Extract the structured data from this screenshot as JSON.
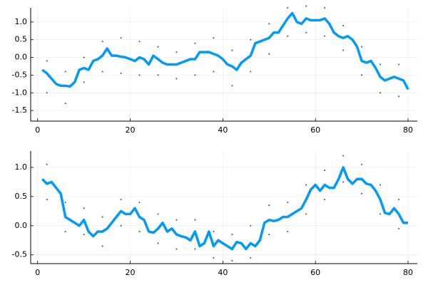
{
  "chart_data": [
    {
      "type": "line",
      "x": [
        1,
        2,
        3,
        4,
        5,
        6,
        7,
        8,
        9,
        10,
        11,
        12,
        13,
        14,
        15,
        16,
        17,
        18,
        19,
        20,
        21,
        22,
        23,
        24,
        25,
        26,
        27,
        28,
        29,
        30,
        31,
        32,
        33,
        34,
        35,
        36,
        37,
        38,
        39,
        40,
        41,
        42,
        43,
        44,
        45,
        46,
        47,
        48,
        49,
        50,
        51,
        52,
        53,
        54,
        55,
        56,
        57,
        58,
        59,
        60,
        61,
        62,
        63,
        64,
        65,
        66,
        67,
        68,
        69,
        70,
        71,
        72,
        73,
        74,
        75,
        76,
        77,
        78,
        79,
        80
      ],
      "series": [
        {
          "color": "#009af9",
          "values": [
            -0.35,
            -0.45,
            -0.6,
            -0.75,
            -0.8,
            -0.8,
            -0.82,
            -0.7,
            -0.35,
            -0.3,
            -0.35,
            -0.1,
            -0.05,
            0.05,
            0.25,
            0.05,
            0.05,
            0.02,
            0.0,
            -0.05,
            -0.1,
            0.0,
            -0.05,
            -0.2,
            0.05,
            -0.05,
            -0.15,
            -0.2,
            -0.2,
            -0.2,
            -0.15,
            -0.1,
            -0.05,
            -0.05,
            0.15,
            0.15,
            0.15,
            0.1,
            0.05,
            -0.05,
            -0.2,
            -0.25,
            -0.35,
            -0.15,
            -0.05,
            0.05,
            0.4,
            0.45,
            0.5,
            0.55,
            0.7,
            0.7,
            0.9,
            1.1,
            1.25,
            1.0,
            0.95,
            1.1,
            1.05,
            1.05,
            1.05,
            1.1,
            0.95,
            0.7,
            0.6,
            0.55,
            0.6,
            0.5,
            0.3,
            -0.1,
            -0.15,
            -0.1,
            -0.3,
            -0.55,
            -0.65,
            -0.6,
            -0.55,
            -0.6,
            -0.65,
            -0.9
          ]
        }
      ],
      "points": {
        "color": "#000000",
        "x": [
          2,
          2,
          6,
          6,
          10,
          10,
          14,
          14,
          18,
          18,
          22,
          22,
          26,
          26,
          30,
          30,
          34,
          34,
          38,
          38,
          42,
          42,
          46,
          46,
          50,
          50,
          54,
          54,
          58,
          58,
          62,
          62,
          66,
          66,
          70,
          70,
          74,
          74,
          78,
          78
        ],
        "y": [
          -0.1,
          -1.0,
          -0.4,
          -1.3,
          0.0,
          -0.7,
          0.45,
          -0.4,
          0.55,
          -0.45,
          0.45,
          -0.5,
          0.3,
          -0.5,
          0.15,
          -0.6,
          0.4,
          -0.5,
          0.55,
          -0.4,
          0.2,
          -0.8,
          0.5,
          -0.4,
          0.95,
          0.1,
          1.4,
          0.6,
          1.45,
          0.7,
          1.4,
          0.6,
          0.9,
          0.2,
          0.3,
          -0.5,
          -0.2,
          -1.0,
          -0.2,
          -1.1
        ]
      },
      "xlim": [
        -1.5,
        82
      ],
      "xticks": [
        0,
        20,
        40,
        60,
        80
      ],
      "ylim": [
        -1.8,
        1.4
      ],
      "yticks": [
        -1.5,
        {
          "value": -1.0,
          "label": "-1.0"
        },
        -0.5,
        {
          "value": 0.0,
          "label": "0.0"
        },
        0.5,
        {
          "value": 1.0,
          "label": "1.0"
        }
      ],
      "grid": true
    },
    {
      "type": "line",
      "x": [
        1,
        2,
        3,
        4,
        5,
        6,
        7,
        8,
        9,
        10,
        11,
        12,
        13,
        14,
        15,
        16,
        17,
        18,
        19,
        20,
        21,
        22,
        23,
        24,
        25,
        26,
        27,
        28,
        29,
        30,
        31,
        32,
        33,
        34,
        35,
        36,
        37,
        38,
        39,
        40,
        41,
        42,
        43,
        44,
        45,
        46,
        47,
        48,
        49,
        50,
        51,
        52,
        53,
        54,
        55,
        56,
        57,
        58,
        59,
        60,
        61,
        62,
        63,
        64,
        65,
        66,
        67,
        68,
        69,
        70,
        71,
        72,
        73,
        74,
        75,
        76,
        77,
        78,
        79,
        80
      ],
      "series": [
        {
          "color": "#009af9",
          "values": [
            0.8,
            0.72,
            0.75,
            0.65,
            0.55,
            0.15,
            0.1,
            0.05,
            0.0,
            0.1,
            -0.1,
            -0.18,
            -0.1,
            -0.1,
            -0.05,
            0.05,
            0.15,
            0.25,
            0.2,
            0.2,
            0.3,
            0.15,
            0.1,
            -0.1,
            -0.12,
            -0.05,
            0.05,
            -0.1,
            -0.05,
            -0.15,
            -0.18,
            -0.2,
            -0.25,
            -0.1,
            -0.35,
            -0.3,
            -0.1,
            -0.35,
            -0.25,
            -0.3,
            -0.35,
            -0.4,
            -0.28,
            -0.3,
            -0.4,
            -0.3,
            -0.35,
            -0.25,
            0.05,
            0.1,
            0.08,
            0.1,
            0.15,
            0.15,
            0.2,
            0.25,
            0.3,
            0.45,
            0.62,
            0.7,
            0.6,
            0.7,
            0.65,
            0.65,
            0.8,
            1.0,
            0.8,
            0.72,
            0.8,
            0.8,
            0.72,
            0.7,
            0.6,
            0.45,
            0.22,
            0.2,
            0.3,
            0.2,
            0.05,
            0.05
          ]
        }
      ],
      "points": {
        "color": "#000000",
        "x": [
          2,
          2,
          6,
          6,
          10,
          10,
          14,
          14,
          18,
          18,
          22,
          22,
          26,
          26,
          30,
          30,
          34,
          34,
          38,
          38,
          42,
          42,
          46,
          46,
          50,
          50,
          54,
          54,
          58,
          58,
          62,
          62,
          66,
          66,
          70,
          70,
          74,
          74,
          78,
          78
        ],
        "y": [
          1.05,
          0.45,
          0.4,
          -0.1,
          0.3,
          -0.15,
          0.15,
          -0.35,
          0.45,
          0.0,
          0.4,
          -0.1,
          0.2,
          -0.3,
          0.1,
          -0.4,
          0.1,
          -0.4,
          -0.1,
          -0.55,
          -0.15,
          -0.6,
          0.0,
          -0.55,
          0.35,
          -0.15,
          0.4,
          -0.1,
          0.7,
          0.2,
          0.95,
          0.45,
          1.2,
          0.75,
          1.05,
          0.55,
          0.7,
          0.2,
          0.45,
          -0.05
        ]
      },
      "xlim": [
        -1.5,
        82
      ],
      "xticks": [
        0,
        20,
        40,
        60,
        80
      ],
      "ylim": [
        -0.65,
        1.28
      ],
      "yticks": [
        -0.5,
        {
          "value": 0.0,
          "label": "0.0"
        },
        0.5,
        {
          "value": 1.0,
          "label": "1.0"
        }
      ],
      "grid": true
    }
  ]
}
